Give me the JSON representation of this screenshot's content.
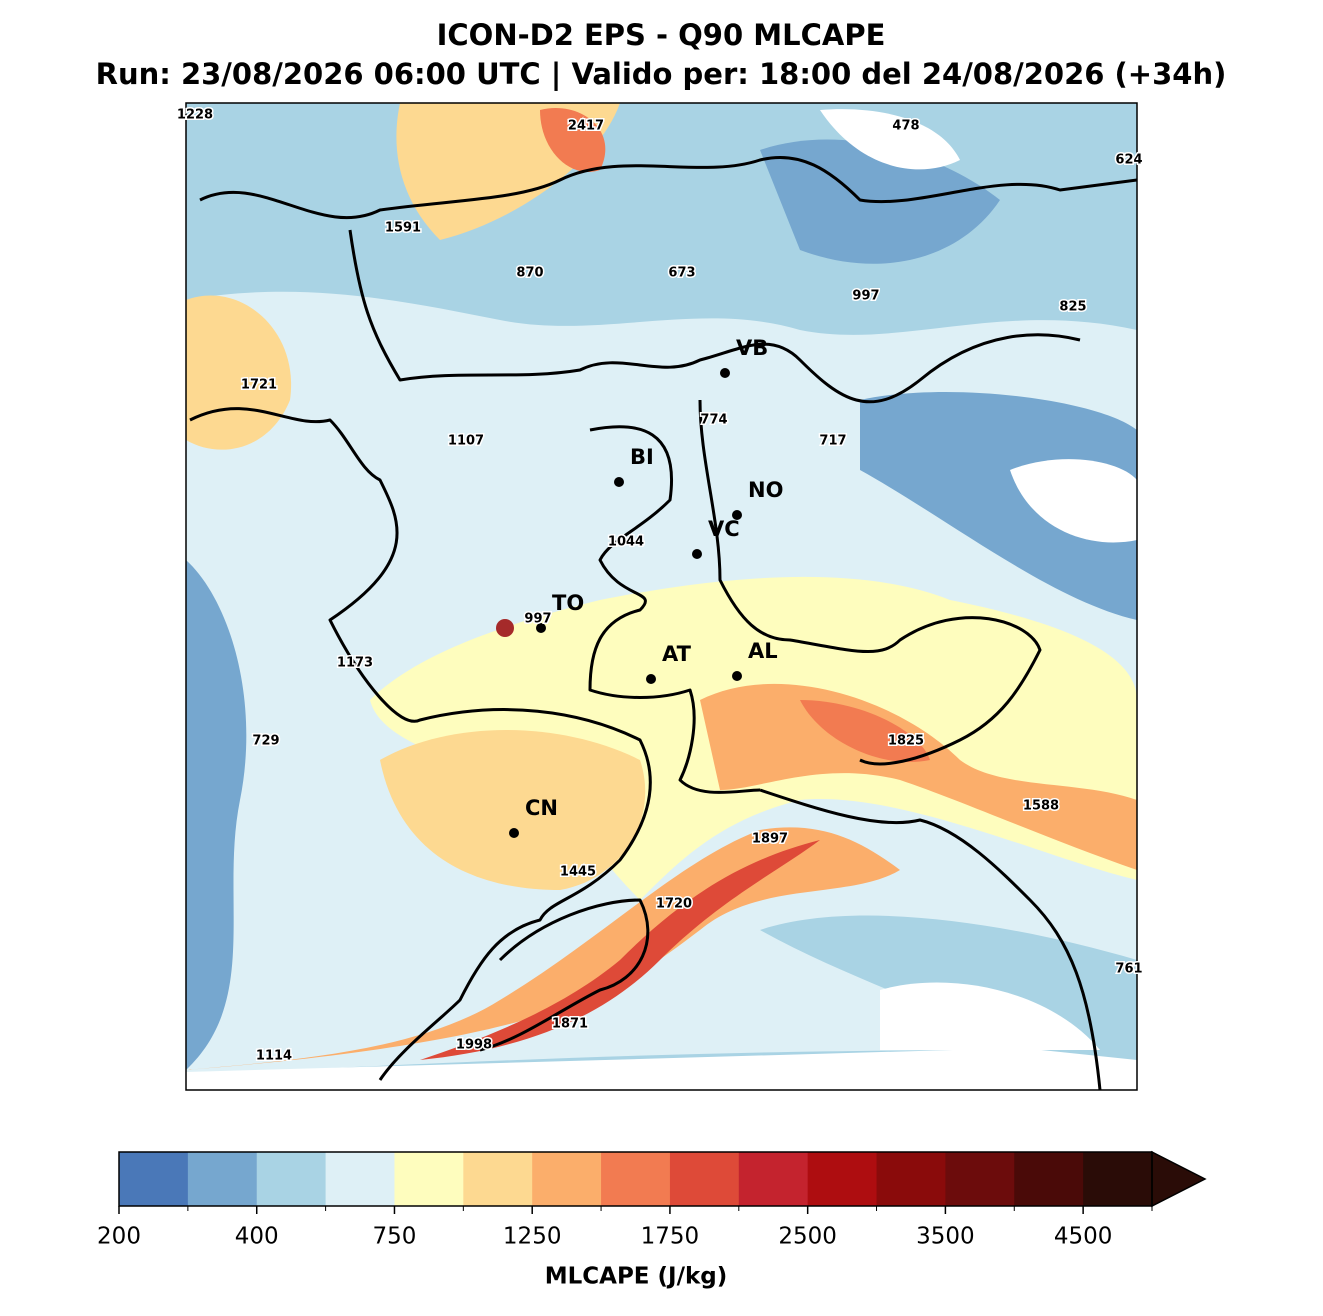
{
  "title": "ICON-D2 EPS - Q90 MLCAPE",
  "subtitle": "Run: 23/08/2026 06:00 UTC | Valido per: 18:00 del 24/08/2026 (+34h)",
  "cities": [
    "VB",
    "BI",
    "NO",
    "VC",
    "TO",
    "AT",
    "AL",
    "CN"
  ],
  "point_values": [
    1228,
    2417,
    478,
    624,
    1591,
    870,
    673,
    997,
    825,
    1721,
    774,
    717,
    1107,
    1044,
    997,
    1173,
    729,
    1825,
    1588,
    1897,
    1445,
    1720,
    761,
    1871,
    1998,
    1114
  ],
  "colorbar": {
    "label": "MLCAPE (J/kg)",
    "ticks": [
      200,
      400,
      750,
      1250,
      1750,
      2500,
      3500,
      4500
    ],
    "colors": [
      "#4a78b8",
      "#76a7cf",
      "#a9d3e4",
      "#def0f6",
      "#fefdbe",
      "#fdd991",
      "#fbae6b",
      "#f27b51",
      "#de4a38",
      "#c4232e",
      "#ae0d10",
      "#8a0b0b",
      "#6c0c0c",
      "#4a0a08",
      "#2a0c07"
    ]
  }
}
